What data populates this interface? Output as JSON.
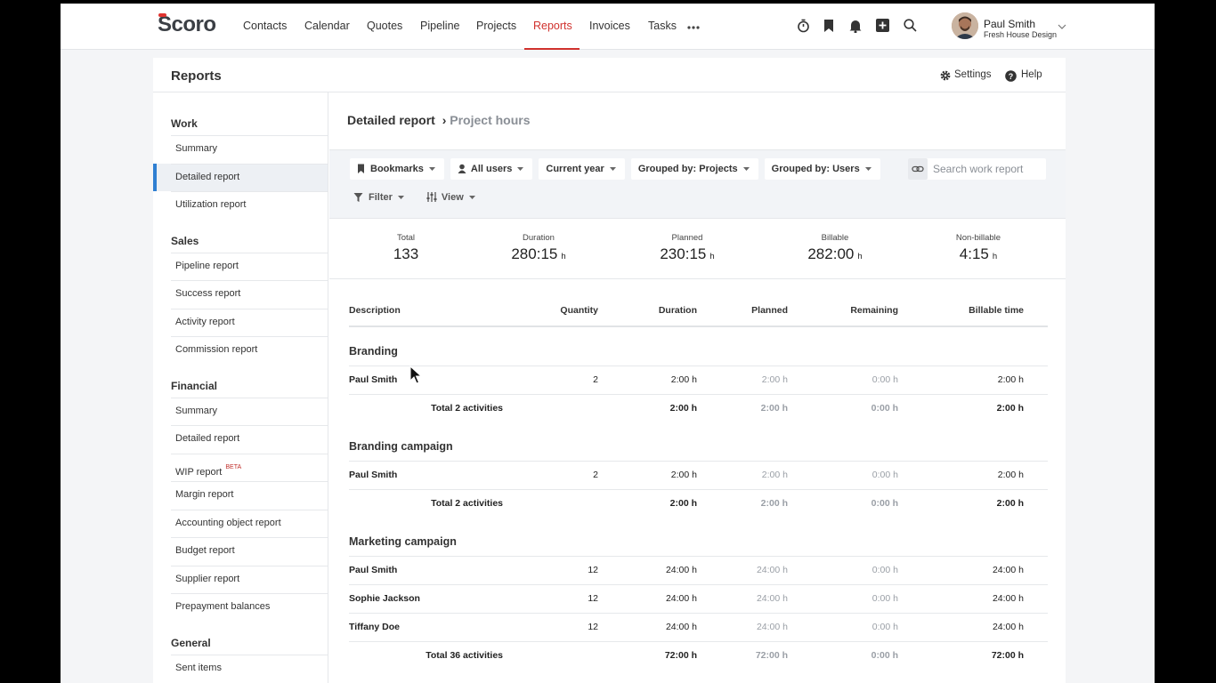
{
  "nav": {
    "logo": "Scoro",
    "items": [
      "Contacts",
      "Calendar",
      "Quotes",
      "Pipeline",
      "Projects",
      "Reports",
      "Invoices",
      "Tasks"
    ],
    "active": 5,
    "user": {
      "name": "Paul Smith",
      "company": "Fresh House Design"
    }
  },
  "header": {
    "title": "Reports",
    "settings": "Settings",
    "help": "Help"
  },
  "sidebar": {
    "active": [
      0,
      1
    ],
    "sections": [
      {
        "title": "Work",
        "items": [
          {
            "label": "Summary"
          },
          {
            "label": "Detailed report"
          },
          {
            "label": "Utilization report"
          }
        ]
      },
      {
        "title": "Sales",
        "items": [
          {
            "label": "Pipeline report"
          },
          {
            "label": "Success report"
          },
          {
            "label": "Activity report"
          },
          {
            "label": "Commission report"
          }
        ]
      },
      {
        "title": "Financial",
        "items": [
          {
            "label": "Summary"
          },
          {
            "label": "Detailed report"
          },
          {
            "label": "WIP report",
            "badge": "BETA"
          },
          {
            "label": "Margin report"
          },
          {
            "label": "Accounting object report"
          },
          {
            "label": "Budget report"
          },
          {
            "label": "Supplier report"
          },
          {
            "label": "Prepayment balances"
          }
        ]
      },
      {
        "title": "General",
        "items": [
          {
            "label": "Sent items"
          }
        ]
      }
    ]
  },
  "breadcrumb": {
    "title": "Detailed report",
    "separator": "›",
    "current": "Project hours"
  },
  "filters": [
    "Bookmarks",
    "All users",
    "Current year",
    "Grouped by: Projects",
    "Grouped by: Users"
  ],
  "filters2": [
    "Filter",
    "View"
  ],
  "search_placeholder": "Search work report",
  "summary": [
    {
      "label": "Total",
      "value": "133"
    },
    {
      "label": "Duration",
      "value": "280:15",
      "unit": "h"
    },
    {
      "label": "Planned",
      "value": "230:15",
      "unit": "h"
    },
    {
      "label": "Billable",
      "value": "282:00",
      "unit": "h"
    },
    {
      "label": "Non-billable",
      "value": "4:15",
      "unit": "h"
    }
  ],
  "table": {
    "columns": [
      "Description",
      "Quantity",
      "Duration",
      "Planned",
      "Remaining",
      "Billable time"
    ],
    "groups": [
      {
        "name": "Branding",
        "rows": [
          [
            "Paul Smith",
            2,
            "2:00 h",
            "2:00 h",
            "0:00 h",
            "2:00 h"
          ]
        ],
        "total": [
          "Total 2 activities",
          "2:00 h",
          "2:00 h",
          "0:00 h",
          "2:00 h"
        ]
      },
      {
        "name": "Branding campaign",
        "rows": [
          [
            "Paul Smith",
            2,
            "2:00 h",
            "2:00 h",
            "0:00 h",
            "2:00 h"
          ]
        ],
        "total": [
          "Total 2 activities",
          "2:00 h",
          "2:00 h",
          "0:00 h",
          "2:00 h"
        ]
      },
      {
        "name": "Marketing campaign",
        "rows": [
          [
            "Paul Smith",
            12,
            "24:00 h",
            "24:00 h",
            "0:00 h",
            "24:00 h"
          ],
          [
            "Sophie Jackson",
            12,
            "24:00 h",
            "24:00 h",
            "0:00 h",
            "24:00 h"
          ],
          [
            "Tiffany Doe",
            12,
            "24:00 h",
            "24:00 h",
            "0:00 h",
            "24:00 h"
          ]
        ],
        "total": [
          "Total 36 activities",
          "72:00 h",
          "72:00 h",
          "0:00 h",
          "72:00 h"
        ]
      }
    ]
  }
}
